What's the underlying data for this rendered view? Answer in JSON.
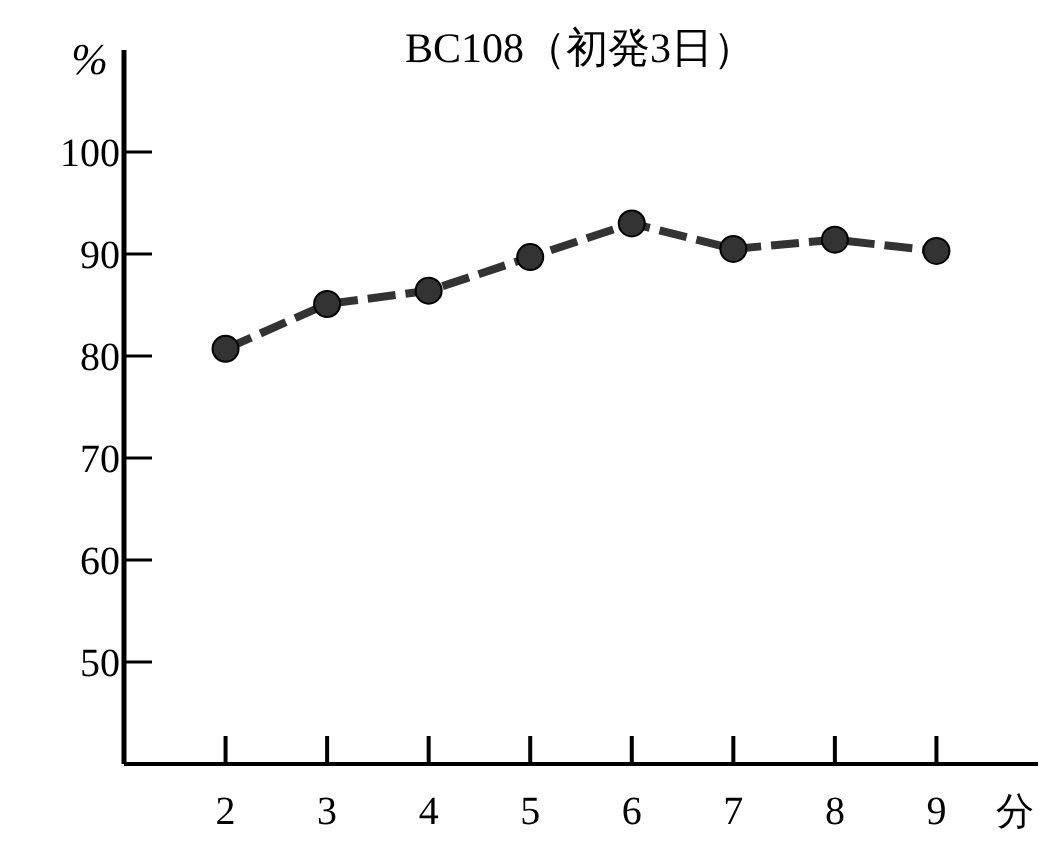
{
  "chart_data": {
    "type": "line",
    "title": "BC108（初発3日）",
    "xlabel": "分",
    "ylabel": "%",
    "x": [
      2,
      3,
      4,
      5,
      6,
      7,
      8,
      9
    ],
    "series": [
      {
        "color": "#333333",
        "values": [
          80.7,
          85.1,
          86.4,
          89.7,
          93.0,
          90.5,
          91.4,
          90.3
        ]
      }
    ],
    "xlim": [
      1,
      10
    ],
    "xticks": [
      2,
      3,
      4,
      5,
      6,
      7,
      8,
      9
    ],
    "ylim": [
      40,
      110
    ],
    "yticks": [
      50,
      60,
      70,
      80,
      90,
      100
    ],
    "marker": "circle",
    "line_style": "dashed"
  }
}
